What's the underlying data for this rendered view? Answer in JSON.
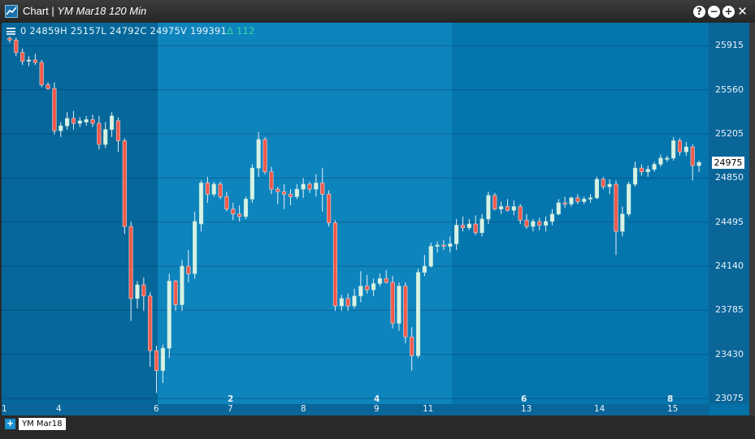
{
  "window": {
    "title_prefix": "Chart | ",
    "title_symbol": "YM Mar18 120 Min",
    "buttons": {
      "help": "?",
      "minimize": "−",
      "maximize": "+",
      "close": "✕"
    }
  },
  "ohlc": {
    "open_value": "0",
    "high": "24859H",
    "low": "25157L",
    "close": "24792C",
    "open": "24975V",
    "volume": "199391",
    "delta": "Δ 112"
  },
  "y_axis": {
    "ticks": [
      "25915",
      "25560",
      "25205",
      "24850",
      "24495",
      "24140",
      "23785",
      "23430",
      "23075"
    ],
    "current_price": "24975"
  },
  "x_axis": {
    "ticks": [
      {
        "label": "1",
        "major": false
      },
      {
        "label": "4",
        "major": false
      },
      {
        "label": "6",
        "major": false
      },
      {
        "label": "2",
        "major": true
      },
      {
        "label": "7",
        "major": false
      },
      {
        "label": "8",
        "major": false
      },
      {
        "label": "4",
        "major": true
      },
      {
        "label": "9",
        "major": false
      },
      {
        "label": "11",
        "major": false
      },
      {
        "label": "6",
        "major": true
      },
      {
        "label": "13",
        "major": false
      },
      {
        "label": "14",
        "major": false
      },
      {
        "label": "8",
        "major": true
      },
      {
        "label": "15",
        "major": false
      }
    ]
  },
  "bottom": {
    "add_label": "+",
    "symbol_chip": "YM Mar18"
  },
  "colors": {
    "up": "#d9f2e6",
    "down": "#f05a4b",
    "wick": "#e8f2fa",
    "background": "#0470a5"
  },
  "chart_data": {
    "type": "candlestick",
    "ylim": [
      23030,
      26100
    ],
    "candles": [
      [
        25975,
        25990,
        25940,
        25960
      ],
      [
        25960,
        25980,
        25830,
        25860
      ],
      [
        25860,
        25890,
        25760,
        25790
      ],
      [
        25790,
        25830,
        25750,
        25800
      ],
      [
        25800,
        25850,
        25760,
        25780
      ],
      [
        25780,
        25800,
        25580,
        25600
      ],
      [
        25600,
        25620,
        25560,
        25570
      ],
      [
        25570,
        25620,
        25200,
        25230
      ],
      [
        25230,
        25300,
        25180,
        25270
      ],
      [
        25270,
        25380,
        25240,
        25330
      ],
      [
        25330,
        25390,
        25240,
        25290
      ],
      [
        25290,
        25340,
        25260,
        25310
      ],
      [
        25300,
        25350,
        25270,
        25320
      ],
      [
        25320,
        25360,
        25260,
        25290
      ],
      [
        25290,
        25350,
        25080,
        25120
      ],
      [
        25120,
        25300,
        25090,
        25240
      ],
      [
        25240,
        25380,
        25180,
        25350
      ],
      [
        25310,
        25340,
        25060,
        25150
      ],
      [
        25150,
        25170,
        24400,
        24460
      ],
      [
        24460,
        24500,
        23700,
        23880
      ],
      [
        23880,
        24020,
        23800,
        23990
      ],
      [
        23990,
        24050,
        23780,
        23900
      ],
      [
        23900,
        23930,
        23330,
        23460
      ],
      [
        23460,
        23500,
        23120,
        23300
      ],
      [
        23300,
        23510,
        23200,
        23480
      ],
      [
        23480,
        24080,
        23400,
        24020
      ],
      [
        24020,
        24030,
        23780,
        23830
      ],
      [
        23830,
        24190,
        23780,
        24140
      ],
      [
        24140,
        24270,
        24010,
        24080
      ],
      [
        24080,
        24580,
        24040,
        24500
      ],
      [
        24480,
        24830,
        24420,
        24810
      ],
      [
        24810,
        24860,
        24650,
        24720
      ],
      [
        24720,
        24820,
        24700,
        24800
      ],
      [
        24800,
        24820,
        24680,
        24700
      ],
      [
        24700,
        24740,
        24580,
        24600
      ],
      [
        24600,
        24650,
        24510,
        24560
      ],
      [
        24560,
        24630,
        24500,
        24540
      ],
      [
        24540,
        24700,
        24520,
        24680
      ],
      [
        24680,
        24960,
        24650,
        24930
      ],
      [
        24930,
        25220,
        24860,
        25160
      ],
      [
        25160,
        25180,
        24880,
        24900
      ],
      [
        24900,
        24940,
        24720,
        24760
      ],
      [
        24760,
        24780,
        24640,
        24740
      ],
      [
        24740,
        24800,
        24600,
        24720
      ],
      [
        24720,
        24760,
        24630,
        24700
      ],
      [
        24700,
        24800,
        24680,
        24760
      ],
      [
        24760,
        24850,
        24690,
        24800
      ],
      [
        24800,
        24820,
        24730,
        24760
      ],
      [
        24760,
        24880,
        24700,
        24810
      ],
      [
        24810,
        24930,
        24580,
        24720
      ],
      [
        24720,
        24750,
        24460,
        24490
      ],
      [
        24490,
        24510,
        23780,
        23820
      ],
      [
        23820,
        23910,
        23780,
        23880
      ],
      [
        23880,
        23920,
        23780,
        23820
      ],
      [
        23820,
        23960,
        23800,
        23900
      ],
      [
        23900,
        24100,
        23850,
        23980
      ],
      [
        23980,
        24070,
        23920,
        23950
      ],
      [
        23950,
        24040,
        23900,
        24000
      ],
      [
        24000,
        24080,
        23980,
        24040
      ],
      [
        24040,
        24110,
        24000,
        24010
      ],
      [
        24010,
        24060,
        23640,
        23680
      ],
      [
        23680,
        24010,
        23620,
        23980
      ],
      [
        23980,
        24010,
        23520,
        23570
      ],
      [
        23570,
        23650,
        23300,
        23420
      ],
      [
        23420,
        24120,
        23400,
        24090
      ],
      [
        24090,
        24230,
        24060,
        24140
      ],
      [
        24140,
        24330,
        24130,
        24300
      ],
      [
        24300,
        24340,
        24250,
        24310
      ],
      [
        24310,
        24350,
        24270,
        24300
      ],
      [
        24300,
        24380,
        24250,
        24320
      ],
      [
        24320,
        24520,
        24270,
        24470
      ],
      [
        24470,
        24540,
        24420,
        24450
      ],
      [
        24450,
        24520,
        24430,
        24480
      ],
      [
        24480,
        24550,
        24390,
        24410
      ],
      [
        24410,
        24560,
        24380,
        24520
      ],
      [
        24520,
        24740,
        24480,
        24710
      ],
      [
        24710,
        24730,
        24590,
        24600
      ],
      [
        24600,
        24660,
        24560,
        24620
      ],
      [
        24620,
        24680,
        24580,
        24590
      ],
      [
        24590,
        24670,
        24550,
        24620
      ],
      [
        24620,
        24640,
        24480,
        24510
      ],
      [
        24510,
        24560,
        24440,
        24460
      ],
      [
        24460,
        24520,
        24420,
        24500
      ],
      [
        24500,
        24530,
        24430,
        24470
      ],
      [
        24470,
        24540,
        24420,
        24500
      ],
      [
        24500,
        24600,
        24470,
        24560
      ],
      [
        24560,
        24680,
        24550,
        24650
      ],
      [
        24650,
        24700,
        24610,
        24640
      ],
      [
        24640,
        24700,
        24620,
        24690
      ],
      [
        24690,
        24720,
        24640,
        24660
      ],
      [
        24660,
        24700,
        24640,
        24680
      ],
      [
        24680,
        24720,
        24650,
        24690
      ],
      [
        24690,
        24860,
        24680,
        24840
      ],
      [
        24840,
        24860,
        24760,
        24780
      ],
      [
        24780,
        24840,
        24720,
        24800
      ],
      [
        24800,
        24830,
        24230,
        24420
      ],
      [
        24420,
        24620,
        24380,
        24560
      ],
      [
        24560,
        24820,
        24540,
        24800
      ],
      [
        24800,
        24980,
        24780,
        24930
      ],
      [
        24930,
        24960,
        24870,
        24900
      ],
      [
        24900,
        24950,
        24860,
        24920
      ],
      [
        24920,
        24980,
        24900,
        24960
      ],
      [
        24960,
        25040,
        24940,
        25010
      ],
      [
        25010,
        25030,
        24980,
        25010
      ],
      [
        25010,
        25180,
        24990,
        25150
      ],
      [
        25150,
        25170,
        25030,
        25060
      ],
      [
        25060,
        25140,
        25030,
        25100
      ],
      [
        25100,
        25120,
        24830,
        24950
      ],
      [
        24950,
        24990,
        24900,
        24975
      ]
    ]
  }
}
